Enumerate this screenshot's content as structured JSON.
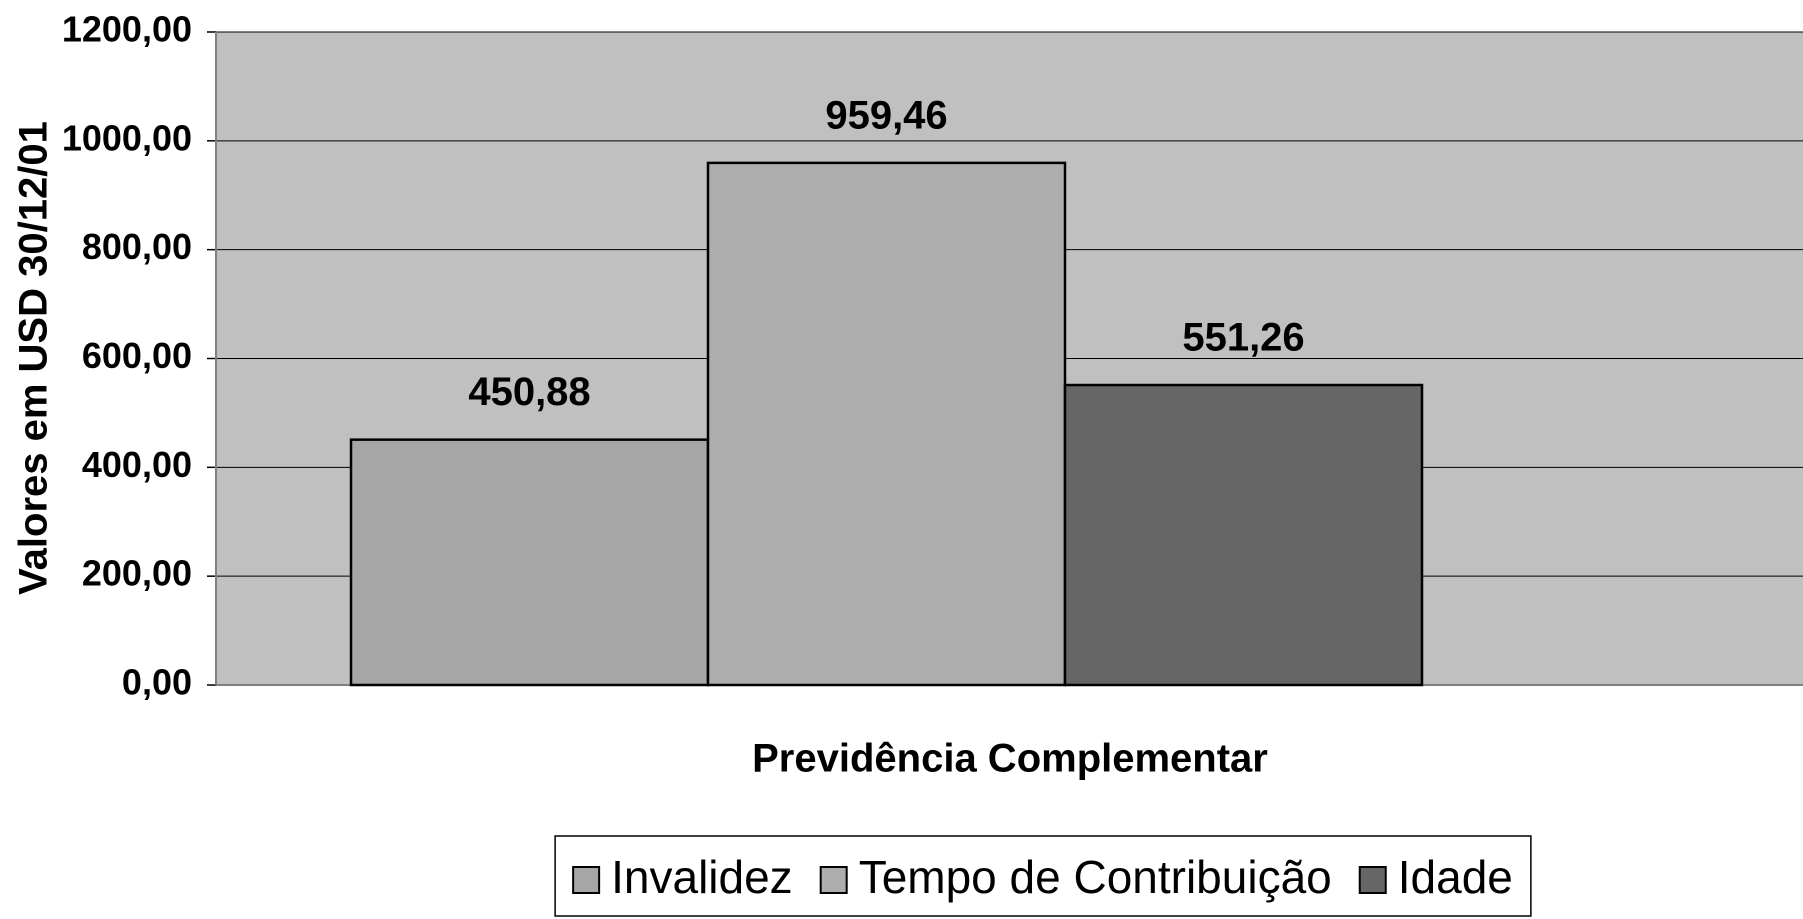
{
  "chart_data": {
    "type": "bar",
    "categories": [
      null
    ],
    "x_label": "Previdência Complementar",
    "y_label": "Valores em USD 30/12/01",
    "series": [
      {
        "name": "Invalidez",
        "color": "#a6a6a6",
        "values": [
          450.88
        ],
        "value_labels": [
          "450,88"
        ]
      },
      {
        "name": "Tempo de Contribuição",
        "color": "#adadad",
        "values": [
          959.46
        ],
        "value_labels": [
          "959,46"
        ]
      },
      {
        "name": "Idade",
        "color": "#666666",
        "values": [
          551.26
        ],
        "value_labels": [
          "551,26"
        ]
      }
    ],
    "ylim": [
      0,
      1200
    ],
    "yticks": [
      {
        "value": 0,
        "label": "0,00"
      },
      {
        "value": 200,
        "label": "200,00"
      },
      {
        "value": 400,
        "label": "400,00"
      },
      {
        "value": 600,
        "label": "600,00"
      },
      {
        "value": 800,
        "label": "800,00"
      },
      {
        "value": 1000,
        "label": "1000,00"
      },
      {
        "value": 1200,
        "label": "1200,00"
      }
    ],
    "grid": true,
    "legend": "bottom"
  }
}
